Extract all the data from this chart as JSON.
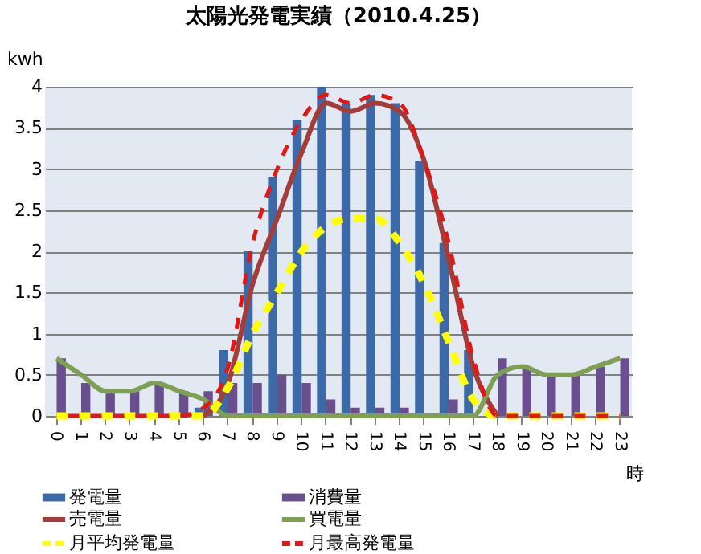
{
  "chart_data": {
    "type": "bar",
    "title": "太陽光発電実績（2010.4.25）",
    "ylabel": "kwh",
    "xlabel": "時",
    "categories": [
      "0",
      "1",
      "2",
      "3",
      "4",
      "5",
      "6",
      "7",
      "8",
      "9",
      "10",
      "11",
      "12",
      "13",
      "14",
      "15",
      "16",
      "17",
      "18",
      "19",
      "20",
      "21",
      "22",
      "23"
    ],
    "ylim": [
      0,
      4
    ],
    "yticks": [
      0,
      0.5,
      1,
      1.5,
      2,
      2.5,
      3,
      3.5,
      4
    ],
    "grid": "y",
    "legend": "bottom",
    "marker": "none",
    "series": [
      {
        "name": "発電量",
        "type": "bar",
        "color": "#3d6aa6",
        "values": [
          0,
          0,
          0,
          0,
          0,
          0,
          0.1,
          0.8,
          2.0,
          2.9,
          3.6,
          4.0,
          3.8,
          3.9,
          3.8,
          3.1,
          2.1,
          0.8,
          null,
          0,
          0,
          0,
          0,
          0
        ]
      },
      {
        "name": "消費量",
        "type": "bar",
        "color": "#6a4f8f",
        "values": [
          0.7,
          0.4,
          0.3,
          0.3,
          0.4,
          0.3,
          0.3,
          0.4,
          0.4,
          0.5,
          0.4,
          0.2,
          0.1,
          0.1,
          0.1,
          0,
          0.2,
          0,
          0.7,
          0.6,
          0.5,
          0.5,
          0.6,
          0.7
        ]
      },
      {
        "name": "売電量",
        "type": "line",
        "color": "#a33d3a",
        "line_style": "solid",
        "values": [
          null,
          null,
          null,
          null,
          null,
          null,
          0,
          0.4,
          1.6,
          2.4,
          3.2,
          3.8,
          3.7,
          3.8,
          3.7,
          3.1,
          1.9,
          0.6,
          0,
          null,
          null,
          null,
          null,
          null
        ]
      },
      {
        "name": "買電量",
        "type": "line",
        "color": "#7f9f55",
        "line_style": "solid",
        "values": [
          0.7,
          0.5,
          0.3,
          0.3,
          0.4,
          0.3,
          0.2,
          0,
          0,
          0,
          0,
          0,
          0,
          0,
          0,
          0,
          0,
          0,
          0.5,
          0.6,
          0.5,
          0.5,
          0.6,
          0.7
        ]
      },
      {
        "name": "月平均発電量",
        "type": "line",
        "color": "#ffff00",
        "line_style": "dashed",
        "values": [
          0,
          0,
          0,
          0,
          0,
          0,
          0,
          0.35,
          1.0,
          1.5,
          2.0,
          2.3,
          2.4,
          2.4,
          2.1,
          1.6,
          0.9,
          0.2,
          0,
          0,
          0,
          0,
          0,
          0
        ]
      },
      {
        "name": "月最高発電量",
        "type": "line",
        "color": "#e01818",
        "line_style": "dashed",
        "values": [
          0,
          0,
          0,
          0,
          0,
          0,
          0.1,
          0.6,
          2.1,
          3.0,
          3.6,
          3.9,
          3.8,
          3.9,
          3.8,
          3.1,
          2.1,
          0.7,
          0,
          0,
          0,
          0,
          0,
          0
        ]
      }
    ]
  }
}
